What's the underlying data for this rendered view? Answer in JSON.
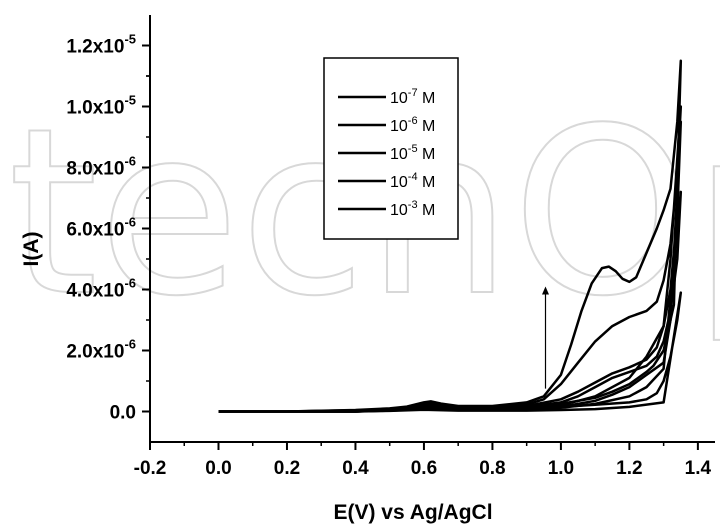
{
  "chart_data": {
    "type": "line",
    "xlabel": "E(V) vs Ag/AgCl",
    "ylabel": "I(A)",
    "xlim": [
      -0.2,
      1.45
    ],
    "ylim": [
      -1e-06,
      1.3e-05
    ],
    "x_ticks": [
      {
        "value": -0.2,
        "label": "-0.2"
      },
      {
        "value": 0.0,
        "label": "0.0"
      },
      {
        "value": 0.2,
        "label": "0.2"
      },
      {
        "value": 0.4,
        "label": "0.4"
      },
      {
        "value": 0.6,
        "label": "0.6"
      },
      {
        "value": 0.8,
        "label": "0.8"
      },
      {
        "value": 1.0,
        "label": "1.0"
      },
      {
        "value": 1.2,
        "label": "1.2"
      },
      {
        "value": 1.4,
        "label": "1.4"
      }
    ],
    "y_ticks": [
      {
        "value": 0.0,
        "mantissa": "0.0",
        "exp": ""
      },
      {
        "value": 2e-06,
        "mantissa": "2.0x10",
        "exp": "-6"
      },
      {
        "value": 4e-06,
        "mantissa": "4.0x10",
        "exp": "-6"
      },
      {
        "value": 6e-06,
        "mantissa": "6.0x10",
        "exp": "-6"
      },
      {
        "value": 8e-06,
        "mantissa": "8.0x10",
        "exp": "-6"
      },
      {
        "value": 1e-05,
        "mantissa": "1.0x10",
        "exp": "-5"
      },
      {
        "value": 1.2e-05,
        "mantissa": "1.2x10",
        "exp": "-5"
      }
    ],
    "grid": false,
    "legend_position": "top-center",
    "annotations": [
      {
        "type": "arrow",
        "x": 0.955,
        "y_from": 7.5e-07,
        "y_to": 4.1e-06
      }
    ],
    "series": [
      {
        "name": "10-7 M",
        "label_base": "10",
        "label_exp": "-7",
        "label_unit": " M",
        "x": [
          0.0,
          0.2,
          0.4,
          0.5,
          0.55,
          0.6,
          0.62,
          0.65,
          0.7,
          0.8,
          0.9,
          1.0,
          1.1,
          1.2,
          1.25,
          1.28,
          1.3,
          1.32,
          1.34,
          1.35,
          1.35,
          1.3,
          1.2,
          1.1,
          1.0,
          0.9,
          0.8,
          0.7,
          0.6,
          0.5,
          0.4,
          0.2,
          0.0
        ],
        "y": [
          0.0,
          0.0,
          2e-08,
          5e-08,
          1e-07,
          1.8e-07,
          2e-07,
          1.6e-07,
          8e-08,
          6e-08,
          1e-07,
          1.5e-07,
          2.2e-07,
          3e-07,
          4e-07,
          6e-07,
          1e-06,
          1.8e-06,
          3e-06,
          3.9e-06,
          3.9e-06,
          3e-07,
          1.5e-07,
          8e-08,
          5e-08,
          3e-08,
          3e-08,
          3e-08,
          6e-08,
          2e-08,
          0.0,
          0.0,
          0.0
        ]
      },
      {
        "name": "10-6 M",
        "label_base": "10",
        "label_exp": "-6",
        "label_unit": " M",
        "x": [
          0.0,
          0.2,
          0.4,
          0.5,
          0.55,
          0.6,
          0.62,
          0.65,
          0.7,
          0.8,
          0.9,
          1.0,
          1.05,
          1.1,
          1.15,
          1.2,
          1.25,
          1.28,
          1.3,
          1.32,
          1.34,
          1.35,
          1.35,
          1.3,
          1.25,
          1.2,
          1.1,
          1.0,
          0.9,
          0.8,
          0.7,
          0.6,
          0.5,
          0.4,
          0.2,
          0.0
        ],
        "y": [
          0.0,
          0.0,
          3e-08,
          6e-08,
          1.2e-07,
          2.3e-07,
          2.5e-07,
          2e-07,
          1.2e-07,
          1e-07,
          1.5e-07,
          3e-07,
          5e-07,
          8e-07,
          1.1e-06,
          1.3e-06,
          1.5e-06,
          1.8e-06,
          2.3e-06,
          3.3e-06,
          5e-06,
          7.2e-06,
          7.2e-06,
          1.4e-06,
          8e-07,
          5e-07,
          2.5e-07,
          1.2e-07,
          8e-08,
          5e-08,
          5e-08,
          8e-08,
          3e-08,
          0.0,
          0.0,
          0.0
        ]
      },
      {
        "name": "10-5 M",
        "label_base": "10",
        "label_exp": "-5",
        "label_unit": " M",
        "x": [
          0.0,
          0.2,
          0.4,
          0.5,
          0.55,
          0.6,
          0.62,
          0.65,
          0.7,
          0.8,
          0.9,
          1.0,
          1.05,
          1.1,
          1.15,
          1.2,
          1.25,
          1.28,
          1.3,
          1.32,
          1.34,
          1.35,
          1.35,
          1.32,
          1.3,
          1.25,
          1.2,
          1.15,
          1.1,
          1.0,
          0.9,
          0.8,
          0.7,
          0.6,
          0.5,
          0.4,
          0.2,
          0.0
        ],
        "y": [
          0.0,
          0.0,
          3e-08,
          7e-08,
          1.3e-07,
          2.5e-07,
          2.7e-07,
          2.2e-07,
          1.3e-07,
          1.2e-07,
          1.8e-07,
          4e-07,
          6.5e-07,
          9.5e-07,
          1.25e-06,
          1.45e-06,
          1.7e-06,
          2.1e-06,
          2.8e-06,
          4e-06,
          6.5e-06,
          9.5e-06,
          9.5e-06,
          3e-06,
          1.6e-06,
          1.2e-06,
          8e-07,
          5.5e-07,
          3.5e-07,
          1.5e-07,
          1e-07,
          6e-08,
          6e-08,
          1e-07,
          4e-08,
          0.0,
          0.0,
          0.0
        ]
      },
      {
        "name": "10-4 M",
        "label_base": "10",
        "label_exp": "-4",
        "label_unit": " M",
        "x": [
          0.0,
          0.2,
          0.4,
          0.5,
          0.55,
          0.6,
          0.62,
          0.65,
          0.7,
          0.8,
          0.9,
          0.95,
          1.0,
          1.05,
          1.1,
          1.15,
          1.2,
          1.25,
          1.28,
          1.3,
          1.32,
          1.34,
          1.35,
          1.35,
          1.32,
          1.3,
          1.25,
          1.2,
          1.1,
          1.0,
          0.9,
          0.8,
          0.7,
          0.6,
          0.5,
          0.4,
          0.2,
          0.0
        ],
        "y": [
          0.0,
          0.0,
          4e-08,
          8e-08,
          1.4e-07,
          2.7e-07,
          3e-07,
          2.4e-07,
          1.5e-07,
          1.5e-07,
          2.3e-07,
          4e-07,
          9e-07,
          1.6e-06,
          2.3e-06,
          2.8e-06,
          3.1e-06,
          3.3e-06,
          3.6e-06,
          4.3e-06,
          5.5e-06,
          7.8e-06,
          1e-05,
          1e-05,
          5e-06,
          2.8e-06,
          1.8e-06,
          1.1e-06,
          5e-07,
          2e-07,
          1.2e-07,
          8e-08,
          8e-08,
          1.2e-07,
          5e-08,
          0.0,
          0.0,
          0.0
        ]
      },
      {
        "name": "10-3 M",
        "label_base": "10",
        "label_exp": "-3",
        "label_unit": " M",
        "x": [
          0.0,
          0.2,
          0.4,
          0.5,
          0.55,
          0.6,
          0.62,
          0.65,
          0.7,
          0.8,
          0.9,
          0.95,
          1.0,
          1.03,
          1.06,
          1.09,
          1.12,
          1.14,
          1.16,
          1.18,
          1.2,
          1.22,
          1.25,
          1.28,
          1.3,
          1.32,
          1.34,
          1.35,
          1.35,
          1.33,
          1.3,
          1.27,
          1.25,
          1.2,
          1.15,
          1.1,
          1.0,
          0.9,
          0.8,
          0.7,
          0.6,
          0.5,
          0.4,
          0.2,
          0.0
        ],
        "y": [
          0.0,
          0.0,
          5e-08,
          1e-07,
          1.6e-07,
          3e-07,
          3.3e-07,
          2.6e-07,
          1.8e-07,
          1.8e-07,
          3e-07,
          5e-07,
          1.2e-06,
          2.2e-06,
          3.3e-06,
          4.2e-06,
          4.7e-06,
          4.75e-06,
          4.6e-06,
          4.35e-06,
          4.25e-06,
          4.4e-06,
          5.2e-06,
          6e-06,
          6.6e-06,
          7.3e-06,
          9.5e-06,
          1.15e-05,
          1.15e-05,
          3.5e-06,
          2e-06,
          1.5e-06,
          1.3e-06,
          9e-07,
          6.5e-07,
          4.5e-07,
          2.5e-07,
          1.5e-07,
          1e-07,
          1e-07,
          1.5e-07,
          6e-08,
          0.0,
          0.0,
          0.0
        ]
      }
    ]
  }
}
